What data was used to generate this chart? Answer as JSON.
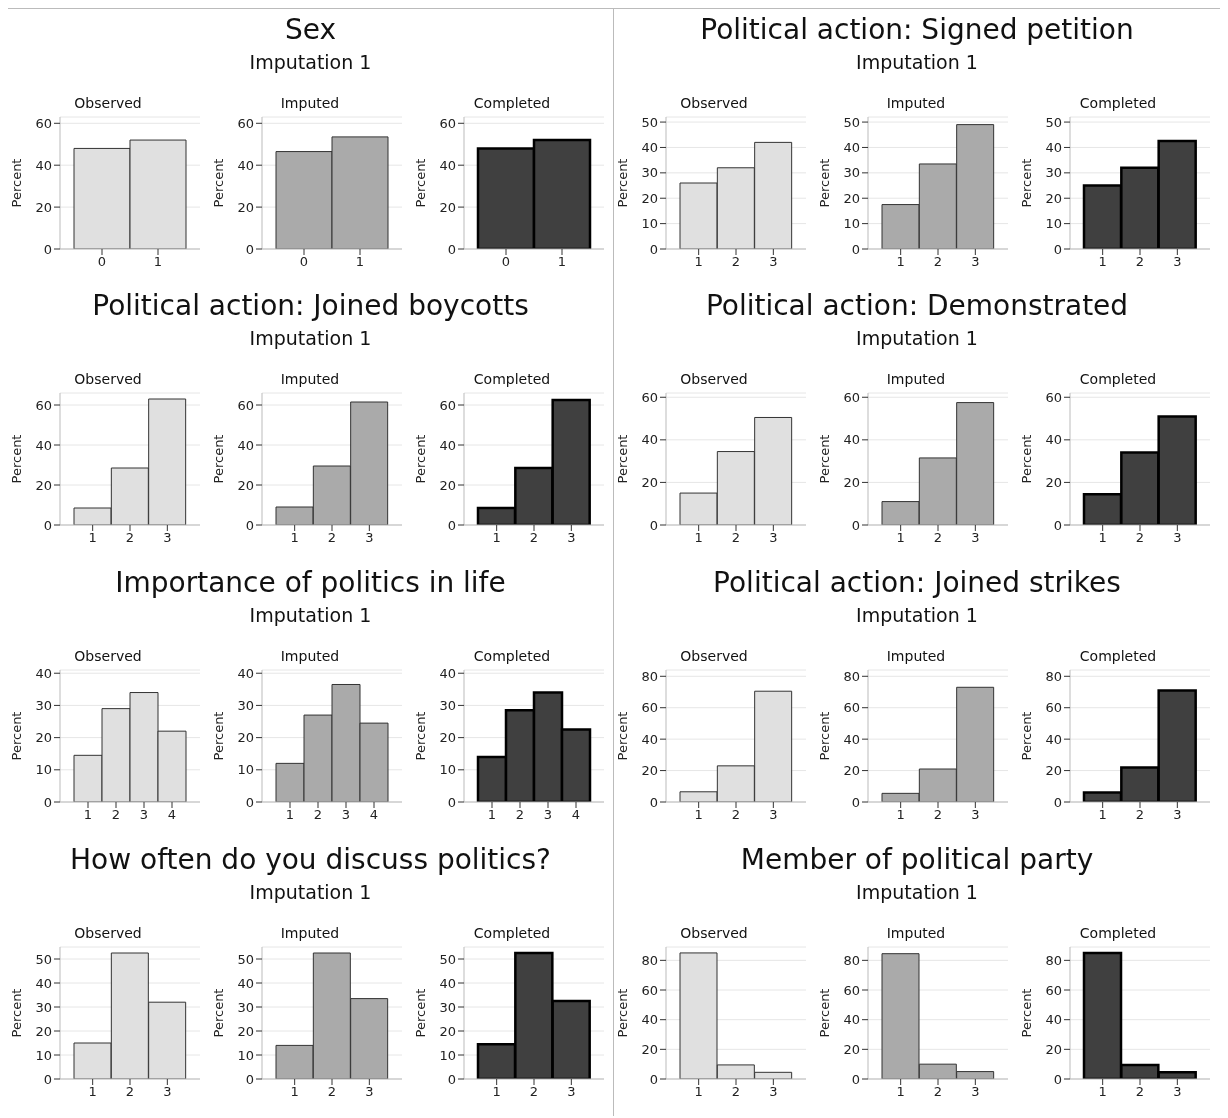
{
  "chart_data": [
    {
      "type": "other",
      "title": "Sex",
      "subtitle": "Imputation 1"
    },
    {
      "type": "bar",
      "title": "Observed",
      "ylabel": "Percent",
      "categories": [
        "0",
        "1"
      ],
      "values": [
        48,
        52
      ],
      "color": "#e0e0e0",
      "ylim": [
        0,
        63
      ],
      "yticks": [
        0,
        20,
        40,
        60
      ],
      "grid": "y"
    },
    {
      "type": "bar",
      "title": "Imputed",
      "ylabel": "Percent",
      "categories": [
        "0",
        "1"
      ],
      "values": [
        46.5,
        53.5
      ],
      "color": "#aaaaaa",
      "ylim": [
        0,
        63
      ],
      "yticks": [
        0,
        20,
        40,
        60
      ],
      "grid": "y"
    },
    {
      "type": "bar",
      "title": "Completed",
      "ylabel": "Percent",
      "categories": [
        "0",
        "1"
      ],
      "values": [
        48,
        52
      ],
      "color": "#404040",
      "ylim": [
        0,
        63
      ],
      "yticks": [
        0,
        20,
        40,
        60
      ],
      "grid": "y"
    },
    {
      "type": "other",
      "title": "Political action: Signed petition",
      "subtitle": "Imputation 1"
    },
    {
      "type": "bar",
      "title": "Observed",
      "ylabel": "Percent",
      "categories": [
        "1",
        "2",
        "3"
      ],
      "values": [
        26,
        32,
        42
      ],
      "color": "#e0e0e0",
      "ylim": [
        0,
        52
      ],
      "yticks": [
        0,
        10,
        20,
        30,
        40,
        50
      ],
      "grid": "y"
    },
    {
      "type": "bar",
      "title": "Imputed",
      "ylabel": "Percent",
      "categories": [
        "1",
        "2",
        "3"
      ],
      "values": [
        17.5,
        33.5,
        49
      ],
      "color": "#aaaaaa",
      "ylim": [
        0,
        52
      ],
      "yticks": [
        0,
        10,
        20,
        30,
        40,
        50
      ],
      "grid": "y"
    },
    {
      "type": "bar",
      "title": "Completed",
      "ylabel": "Percent",
      "categories": [
        "1",
        "2",
        "3"
      ],
      "values": [
        25,
        32,
        42.5
      ],
      "color": "#404040",
      "ylim": [
        0,
        52
      ],
      "yticks": [
        0,
        10,
        20,
        30,
        40,
        50
      ],
      "grid": "y"
    },
    {
      "type": "other",
      "title": "Political action: Joined boycotts",
      "subtitle": "Imputation 1"
    },
    {
      "type": "bar",
      "title": "Observed",
      "ylabel": "Percent",
      "categories": [
        "1",
        "2",
        "3"
      ],
      "values": [
        8.5,
        28.5,
        63
      ],
      "color": "#e0e0e0",
      "ylim": [
        0,
        66
      ],
      "yticks": [
        0,
        20,
        40,
        60
      ],
      "grid": "y"
    },
    {
      "type": "bar",
      "title": "Imputed",
      "ylabel": "Percent",
      "categories": [
        "1",
        "2",
        "3"
      ],
      "values": [
        9,
        29.5,
        61.5
      ],
      "color": "#aaaaaa",
      "ylim": [
        0,
        66
      ],
      "yticks": [
        0,
        20,
        40,
        60
      ],
      "grid": "y"
    },
    {
      "type": "bar",
      "title": "Completed",
      "ylabel": "Percent",
      "categories": [
        "1",
        "2",
        "3"
      ],
      "values": [
        8.5,
        28.5,
        62.5
      ],
      "color": "#404040",
      "ylim": [
        0,
        66
      ],
      "yticks": [
        0,
        20,
        40,
        60
      ],
      "grid": "y"
    },
    {
      "type": "other",
      "title": "Political action: Demonstrated",
      "subtitle": "Imputation 1"
    },
    {
      "type": "bar",
      "title": "Observed",
      "ylabel": "Percent",
      "categories": [
        "1",
        "2",
        "3"
      ],
      "values": [
        15,
        34.5,
        50.5
      ],
      "color": "#e0e0e0",
      "ylim": [
        0,
        62
      ],
      "yticks": [
        0,
        20,
        40,
        60
      ],
      "grid": "y"
    },
    {
      "type": "bar",
      "title": "Imputed",
      "ylabel": "Percent",
      "categories": [
        "1",
        "2",
        "3"
      ],
      "values": [
        11,
        31.5,
        57.5
      ],
      "color": "#aaaaaa",
      "ylim": [
        0,
        62
      ],
      "yticks": [
        0,
        20,
        40,
        60
      ],
      "grid": "y"
    },
    {
      "type": "bar",
      "title": "Completed",
      "ylabel": "Percent",
      "categories": [
        "1",
        "2",
        "3"
      ],
      "values": [
        14.5,
        34,
        51
      ],
      "color": "#404040",
      "ylim": [
        0,
        62
      ],
      "yticks": [
        0,
        20,
        40,
        60
      ],
      "grid": "y"
    },
    {
      "type": "other",
      "title": "Importance of politics in life",
      "subtitle": "Imputation 1"
    },
    {
      "type": "bar",
      "title": "Observed",
      "ylabel": "Percent",
      "categories": [
        "1",
        "2",
        "3",
        "4"
      ],
      "values": [
        14.5,
        29,
        34,
        22
      ],
      "color": "#e0e0e0",
      "ylim": [
        0,
        41
      ],
      "yticks": [
        0,
        10,
        20,
        30,
        40
      ],
      "grid": "y"
    },
    {
      "type": "bar",
      "title": "Imputed",
      "ylabel": "Percent",
      "categories": [
        "1",
        "2",
        "3",
        "4"
      ],
      "values": [
        12,
        27,
        36.5,
        24.5
      ],
      "color": "#aaaaaa",
      "ylim": [
        0,
        41
      ],
      "yticks": [
        0,
        10,
        20,
        30,
        40
      ],
      "grid": "y"
    },
    {
      "type": "bar",
      "title": "Completed",
      "ylabel": "Percent",
      "categories": [
        "1",
        "2",
        "3",
        "4"
      ],
      "values": [
        14,
        28.5,
        34,
        22.5
      ],
      "color": "#404040",
      "ylim": [
        0,
        41
      ],
      "yticks": [
        0,
        10,
        20,
        30,
        40
      ],
      "grid": "y"
    },
    {
      "type": "other",
      "title": "Political action: Joined strikes",
      "subtitle": "Imputation 1"
    },
    {
      "type": "bar",
      "title": "Observed",
      "ylabel": "Percent",
      "categories": [
        "1",
        "2",
        "3"
      ],
      "values": [
        6.5,
        23,
        70.5
      ],
      "color": "#e0e0e0",
      "ylim": [
        0,
        84
      ],
      "yticks": [
        0,
        20,
        40,
        60,
        80
      ],
      "grid": "y"
    },
    {
      "type": "bar",
      "title": "Imputed",
      "ylabel": "Percent",
      "categories": [
        "1",
        "2",
        "3"
      ],
      "values": [
        5.5,
        21,
        73
      ],
      "color": "#aaaaaa",
      "ylim": [
        0,
        84
      ],
      "yticks": [
        0,
        20,
        40,
        60,
        80
      ],
      "grid": "y"
    },
    {
      "type": "bar",
      "title": "Completed",
      "ylabel": "Percent",
      "categories": [
        "1",
        "2",
        "3"
      ],
      "values": [
        6,
        22,
        71
      ],
      "color": "#404040",
      "ylim": [
        0,
        84
      ],
      "yticks": [
        0,
        20,
        40,
        60,
        80
      ],
      "grid": "y"
    },
    {
      "type": "other",
      "title": "How often do you discuss politics?",
      "subtitle": "Imputation 1"
    },
    {
      "type": "bar",
      "title": "Observed",
      "ylabel": "Percent",
      "categories": [
        "1",
        "2",
        "3"
      ],
      "values": [
        15,
        52.5,
        32
      ],
      "color": "#e0e0e0",
      "ylim": [
        0,
        55
      ],
      "yticks": [
        0,
        10,
        20,
        30,
        40,
        50
      ],
      "grid": "y"
    },
    {
      "type": "bar",
      "title": "Imputed",
      "ylabel": "Percent",
      "categories": [
        "1",
        "2",
        "3"
      ],
      "values": [
        14,
        52.5,
        33.5
      ],
      "color": "#aaaaaa",
      "ylim": [
        0,
        55
      ],
      "yticks": [
        0,
        10,
        20,
        30,
        40,
        50
      ],
      "grid": "y"
    },
    {
      "type": "bar",
      "title": "Completed",
      "ylabel": "Percent",
      "categories": [
        "1",
        "2",
        "3"
      ],
      "values": [
        14.5,
        52.5,
        32.5
      ],
      "color": "#404040",
      "ylim": [
        0,
        55
      ],
      "yticks": [
        0,
        10,
        20,
        30,
        40,
        50
      ],
      "grid": "y"
    },
    {
      "type": "other",
      "title": "Member of political party",
      "subtitle": "Imputation 1"
    },
    {
      "type": "bar",
      "title": "Observed",
      "ylabel": "Percent",
      "categories": [
        "1",
        "2",
        "3"
      ],
      "values": [
        85,
        9.5,
        4.5
      ],
      "color": "#e0e0e0",
      "ylim": [
        0,
        89
      ],
      "yticks": [
        0,
        20,
        40,
        60,
        80
      ],
      "grid": "y"
    },
    {
      "type": "bar",
      "title": "Imputed",
      "ylabel": "Percent",
      "categories": [
        "1",
        "2",
        "3"
      ],
      "values": [
        84.5,
        10,
        5
      ],
      "color": "#aaaaaa",
      "ylim": [
        0,
        89
      ],
      "yticks": [
        0,
        20,
        40,
        60,
        80
      ],
      "grid": "y"
    },
    {
      "type": "bar",
      "title": "Completed",
      "ylabel": "Percent",
      "categories": [
        "1",
        "2",
        "3"
      ],
      "values": [
        85,
        9.5,
        4.5
      ],
      "color": "#404040",
      "ylim": [
        0,
        89
      ],
      "yticks": [
        0,
        20,
        40,
        60,
        80
      ],
      "grid": "y"
    }
  ]
}
